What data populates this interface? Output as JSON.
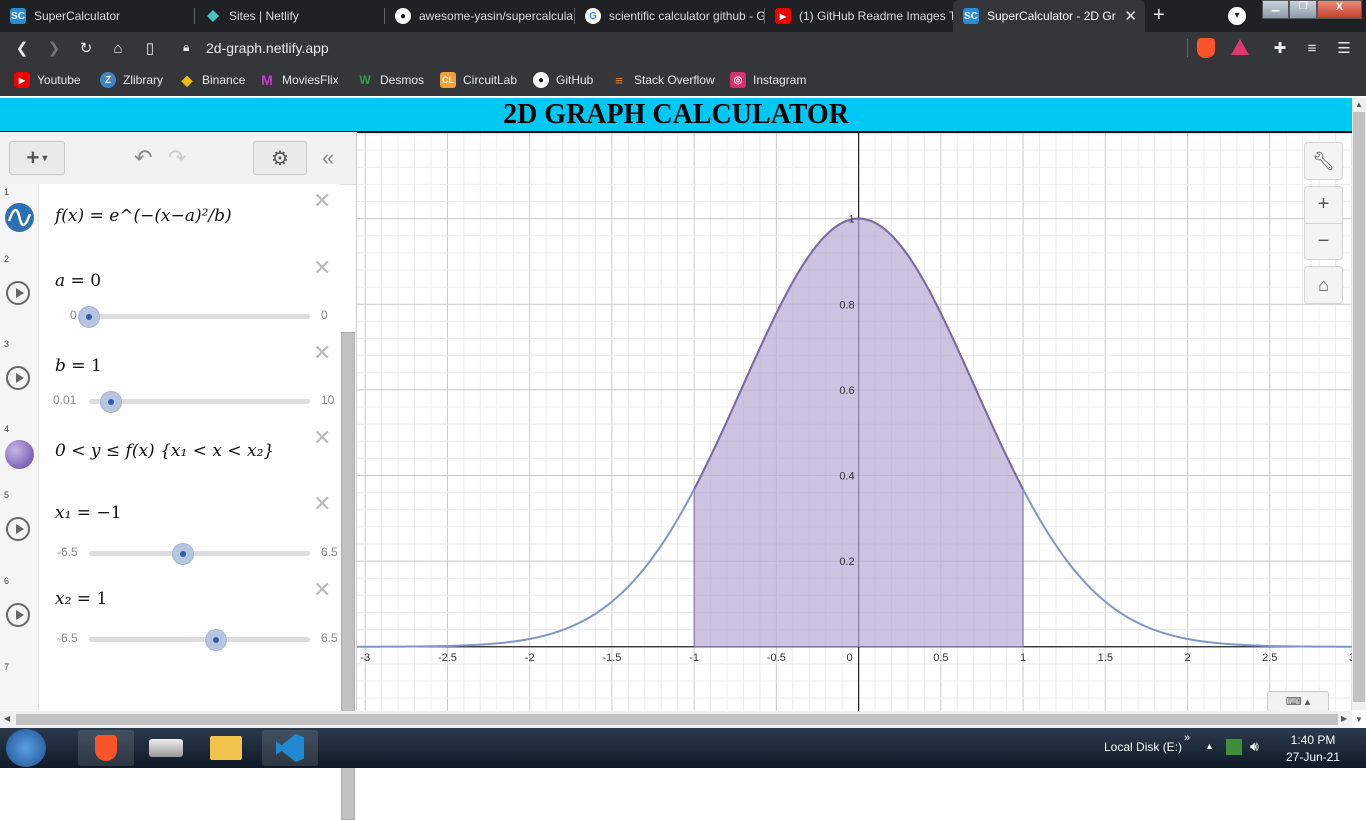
{
  "browser": {
    "tabs": [
      {
        "title": "SuperCalculator",
        "icon": "supercalculator-icon"
      },
      {
        "title": "Sites | Netlify",
        "icon": "netlify-icon"
      },
      {
        "title": "awesome-yasin/supercalcula",
        "icon": "github-icon"
      },
      {
        "title": "scientific calculator github - G",
        "icon": "google-icon"
      },
      {
        "title": "(1) GitHub Readme Images T",
        "icon": "youtube-icon"
      },
      {
        "title": "SuperCalculator - 2D Gr",
        "icon": "supercalculator-icon",
        "active": true
      }
    ],
    "url": "2d-graph.netlify.app",
    "bookmarks": [
      "Youtube",
      "Zlibrary",
      "Binance",
      "MoviesFlix",
      "Desmos",
      "CircuitLab",
      "GitHub",
      "Stack Overflow",
      "Instagram"
    ]
  },
  "app": {
    "title": "2D GRAPH CALCULATOR",
    "expressions": [
      {
        "num": "1",
        "latex": "f(x) = e^(−(x−a)²/b)"
      },
      {
        "num": "2",
        "var": "a",
        "value": "0",
        "min": "0",
        "max": "0",
        "pos": 0.0
      },
      {
        "num": "3",
        "var": "b",
        "value": "1",
        "min": "0.01",
        "max": "10",
        "pos": 0.1
      },
      {
        "num": "4",
        "latex": "0 < y ≤ f(x) {x₁ < x < x₂}"
      },
      {
        "num": "5",
        "var": "x₁",
        "value": "−1",
        "min": "-6.5",
        "max": "6.5",
        "pos": 0.4231
      },
      {
        "num": "6",
        "var": "x₂",
        "value": "1",
        "min": "-6.5",
        "max": "6.5",
        "pos": 0.5769
      },
      {
        "num": "7"
      }
    ]
  },
  "chart_data": {
    "type": "line",
    "function": "exp(-(x-a)^2/b)",
    "params": {
      "a": 0,
      "b": 1
    },
    "shaded_region": {
      "x_min": -1,
      "x_max": 1
    },
    "xlim": [
      -3.05,
      3.0
    ],
    "ylim": [
      -0.15,
      1.2
    ],
    "x_ticks": [
      "-3",
      "-2.5",
      "-2",
      "-1.5",
      "-1",
      "-0.5",
      "0",
      "0.5",
      "1",
      "1.5",
      "2",
      "2.5",
      "3"
    ],
    "y_ticks": [
      "0.2",
      "0.4",
      "0.6",
      "0.8",
      "1"
    ],
    "grid": true,
    "colors": {
      "curve": "#7f96c8",
      "shade": "#b8a8d1",
      "shade_edge": "#7c6aa6"
    }
  },
  "taskbar": {
    "drive_label": "Local Disk (E:)",
    "time": "1:40 PM",
    "date": "27-Jun-21"
  }
}
